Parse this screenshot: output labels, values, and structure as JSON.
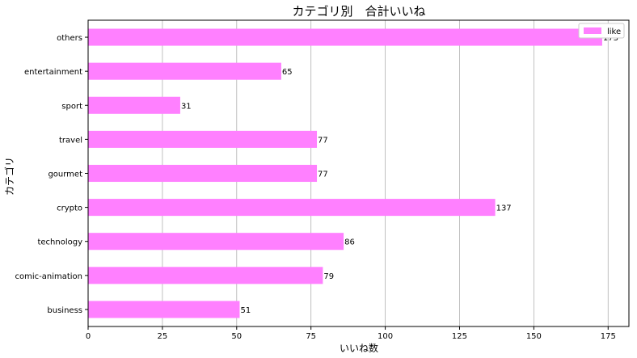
{
  "chart_data": {
    "type": "bar",
    "orientation": "horizontal",
    "title": "カテゴリ別　合計いいね",
    "xlabel": "いいね数",
    "ylabel": "カテゴリ",
    "categories": [
      "business",
      "comic-animation",
      "technology",
      "crypto",
      "gourmet",
      "travel",
      "sport",
      "entertainment",
      "others"
    ],
    "series": [
      {
        "name": "like",
        "values": [
          51,
          79,
          86,
          137,
          77,
          77,
          31,
          65,
          173
        ],
        "color": "#ff80ff"
      }
    ],
    "xlim": [
      0,
      182
    ],
    "xticks": [
      0,
      25,
      50,
      75,
      100,
      125,
      150,
      175
    ],
    "grid": "x",
    "legend_position": "top-right",
    "data_labels": true
  }
}
